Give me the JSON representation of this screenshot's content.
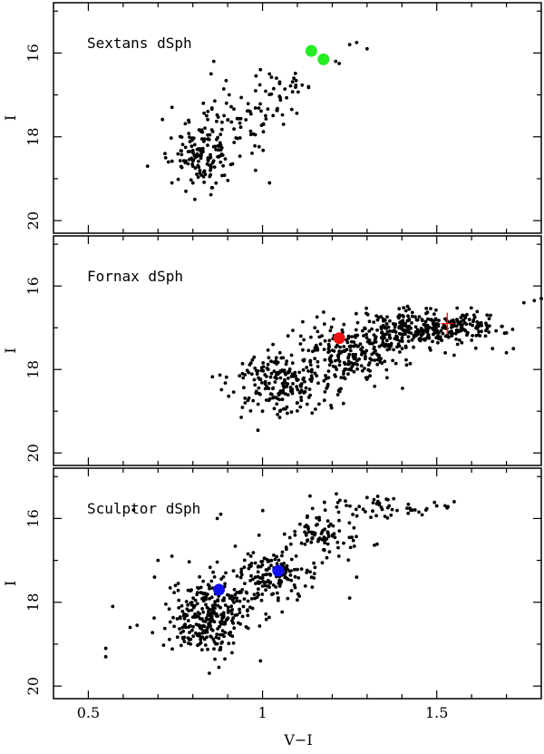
{
  "figure": {
    "xlabel": "V−I",
    "ylabel": "I",
    "xlim": [
      0.4,
      1.8
    ],
    "ylim": [
      20.3,
      14.8
    ],
    "x_ticks": [
      0.5,
      1,
      1.5
    ],
    "x_tick_labels": [
      "0.5",
      "1",
      "1.5"
    ],
    "y_major_ticks": [
      16,
      18,
      20
    ],
    "y_minor_ticks": [
      15,
      17,
      19
    ]
  },
  "chart_data": [
    {
      "type": "scatter",
      "title": "Sextans dSph",
      "xlabel": "",
      "ylabel": "I",
      "xlim": [
        0.4,
        1.8
      ],
      "ylim": [
        20.3,
        14.8
      ],
      "highlight_color": "#22ee22",
      "highlight": [
        [
          1.14,
          15.95
        ],
        [
          1.175,
          16.15
        ]
      ],
      "cross": [],
      "anchor_points": [
        [
          1.25,
          15.8
        ],
        [
          1.27,
          15.75
        ],
        [
          1.21,
          16.2
        ],
        [
          1.22,
          16.25
        ],
        [
          1.3,
          15.9
        ],
        [
          1.02,
          16.5
        ],
        [
          1.04,
          16.6
        ],
        [
          0.98,
          16.9
        ],
        [
          0.86,
          16.2
        ],
        [
          0.8,
          18.7
        ],
        [
          0.82,
          18.8
        ],
        [
          0.85,
          18.5
        ],
        [
          0.72,
          18.4
        ],
        [
          0.74,
          19.1
        ],
        [
          0.78,
          19.3
        ],
        [
          0.73,
          18.6
        ],
        [
          0.67,
          18.7
        ],
        [
          0.98,
          18.8
        ],
        [
          1.02,
          19.1
        ],
        [
          0.88,
          18.2
        ],
        [
          0.83,
          17.2
        ],
        [
          0.9,
          17.6
        ]
      ],
      "clusters": [
        {
          "n": 150,
          "x_mean": 0.83,
          "x_sd": 0.045,
          "y_mean": 18.4,
          "y_sd": 0.4
        },
        {
          "n": 60,
          "x_mean": 0.95,
          "x_sd": 0.05,
          "y_mean": 17.5,
          "y_sd": 0.35
        },
        {
          "n": 25,
          "x_mean": 1.08,
          "x_sd": 0.05,
          "y_mean": 16.8,
          "y_sd": 0.25
        }
      ]
    },
    {
      "type": "scatter",
      "title": "Fornax dSph",
      "xlabel": "",
      "ylabel": "I",
      "xlim": [
        0.4,
        1.8
      ],
      "ylim": [
        20.3,
        14.8
      ],
      "highlight_color": "#ee1111",
      "highlight": [
        [
          1.22,
          17.25
        ]
      ],
      "cross": [
        [
          1.53,
          16.9
        ]
      ],
      "anchor_points": [
        [
          0.95,
          18.8
        ],
        [
          1.0,
          19.0
        ],
        [
          1.05,
          19.0
        ],
        [
          1.1,
          18.8
        ],
        [
          1.75,
          16.4
        ],
        [
          1.78,
          16.35
        ],
        [
          1.8,
          16.3
        ],
        [
          1.72,
          17.5
        ],
        [
          1.7,
          17.6
        ],
        [
          1.66,
          17.5
        ],
        [
          1.64,
          17.2
        ],
        [
          1.6,
          17.3
        ],
        [
          1.03,
          17.4
        ],
        [
          1.05,
          17.6
        ],
        [
          1.11,
          17.2
        ],
        [
          1.15,
          17.0
        ]
      ],
      "clusters": [
        {
          "n": 220,
          "x_mean": 1.06,
          "x_sd": 0.07,
          "y_mean": 18.35,
          "y_sd": 0.35
        },
        {
          "n": 220,
          "x_mean": 1.26,
          "x_sd": 0.07,
          "y_mean": 17.6,
          "y_sd": 0.35
        },
        {
          "n": 230,
          "x_mean": 1.43,
          "x_sd": 0.07,
          "y_mean": 17.05,
          "y_sd": 0.25
        },
        {
          "n": 100,
          "x_mean": 1.58,
          "x_sd": 0.06,
          "y_mean": 16.95,
          "y_sd": 0.15
        }
      ]
    },
    {
      "type": "scatter",
      "title": "Sculptor dSph",
      "xlabel": "V−I",
      "ylabel": "I",
      "xlim": [
        0.4,
        1.8
      ],
      "ylim": [
        20.3,
        14.8
      ],
      "highlight_color": "#1111ee",
      "highlight": [
        [
          0.875,
          17.7
        ],
        [
          1.045,
          17.25
        ]
      ],
      "cross": [],
      "anchor_points": [
        [
          0.55,
          19.1
        ],
        [
          0.55,
          19.3
        ],
        [
          0.57,
          18.1
        ],
        [
          0.62,
          18.6
        ],
        [
          0.64,
          18.55
        ],
        [
          0.63,
          15.8
        ],
        [
          0.69,
          17.4
        ],
        [
          0.7,
          17.0
        ],
        [
          0.74,
          16.9
        ],
        [
          0.75,
          17.6
        ],
        [
          1.5,
          15.7
        ],
        [
          1.55,
          15.6
        ],
        [
          1.53,
          15.75
        ],
        [
          1.3,
          15.5
        ],
        [
          1.32,
          15.55
        ],
        [
          1.25,
          17.9
        ],
        [
          1.27,
          17.4
        ],
        [
          0.99,
          16.4
        ],
        [
          0.87,
          16.0
        ],
        [
          0.88,
          15.9
        ],
        [
          1.2,
          16.4
        ]
      ],
      "clusters": [
        {
          "n": 300,
          "x_mean": 0.85,
          "x_sd": 0.06,
          "y_mean": 18.35,
          "y_sd": 0.45
        },
        {
          "n": 160,
          "x_mean": 1.02,
          "x_sd": 0.06,
          "y_mean": 17.3,
          "y_sd": 0.35
        },
        {
          "n": 90,
          "x_mean": 1.17,
          "x_sd": 0.06,
          "y_mean": 16.45,
          "y_sd": 0.3
        },
        {
          "n": 50,
          "x_mean": 1.34,
          "x_sd": 0.08,
          "y_mean": 15.7,
          "y_sd": 0.15
        }
      ]
    }
  ]
}
